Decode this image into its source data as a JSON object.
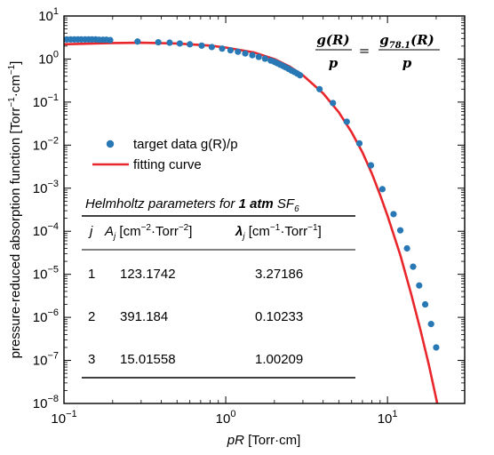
{
  "chart_data": {
    "type": "scatter",
    "xlabel": "pR [Torr·cm]",
    "ylabel": "pressure-reduced absorption function [Torr⁻¹·cm⁻¹]",
    "x_scale": "log",
    "y_scale": "log",
    "xlim": [
      0.1,
      30
    ],
    "ylim": [
      1e-08,
      10
    ],
    "x_ticks": [
      {
        "value": 0.1,
        "label": "10⁻¹"
      },
      {
        "value": 1,
        "label": "10⁰"
      },
      {
        "value": 10,
        "label": "10¹"
      }
    ],
    "y_ticks": [
      {
        "value": 10,
        "label": "10¹"
      },
      {
        "value": 1,
        "label": "10⁰"
      },
      {
        "value": 0.1,
        "label": "10⁻¹"
      },
      {
        "value": 0.01,
        "label": "10⁻²"
      },
      {
        "value": 0.001,
        "label": "10⁻³"
      },
      {
        "value": 0.0001,
        "label": "10⁻⁴"
      },
      {
        "value": 1e-05,
        "label": "10⁻⁵"
      },
      {
        "value": 1e-06,
        "label": "10⁻⁶"
      },
      {
        "value": 1e-07,
        "label": "10⁻⁷"
      },
      {
        "value": 1e-08,
        "label": "10⁻⁸"
      }
    ],
    "legend_position": "left-middle",
    "legend": [
      {
        "label": "target data g(R)/p",
        "marker": "circle",
        "color": "#2878b5"
      },
      {
        "label": "fitting curve",
        "marker": "line",
        "color": "#e8262b"
      }
    ],
    "equation": {
      "lhs_num": "g(R)",
      "lhs_den": "p",
      "rhs_num": "g78.1(R)",
      "rhs_den": "p",
      "equals": "="
    },
    "series": [
      {
        "name": "target data g(R)/p",
        "kind": "scatter",
        "color": "#2878b5",
        "x": [
          0.104,
          0.11,
          0.116,
          0.122,
          0.128,
          0.135,
          0.142,
          0.149,
          0.157,
          0.165,
          0.174,
          0.183,
          0.193,
          0.285,
          0.383,
          0.45,
          0.52,
          0.6,
          0.71,
          0.82,
          0.95,
          1.07,
          1.19,
          1.32,
          1.46,
          1.6,
          1.75,
          1.9,
          2.0,
          2.08,
          2.17,
          2.26,
          2.35,
          2.45,
          2.55,
          2.66,
          2.77,
          2.88,
          3.8,
          4.6,
          5.6,
          6.7,
          7.9,
          9.3,
          10.9,
          12.0,
          13.2,
          14.4,
          15.7,
          17.1,
          18.6,
          20.0
        ],
        "values": [
          2.85,
          2.85,
          2.85,
          2.85,
          2.85,
          2.85,
          2.85,
          2.85,
          2.85,
          2.8,
          2.8,
          2.8,
          2.75,
          2.55,
          2.45,
          2.4,
          2.3,
          2.2,
          2.05,
          1.9,
          1.75,
          1.6,
          1.48,
          1.35,
          1.23,
          1.12,
          1.02,
          0.92,
          0.86,
          0.8,
          0.74,
          0.69,
          0.64,
          0.59,
          0.54,
          0.5,
          0.46,
          0.42,
          0.2,
          0.095,
          0.035,
          0.011,
          0.0034,
          0.00095,
          0.00025,
          0.000105,
          4e-05,
          1.5e-05,
          5.5e-06,
          2e-06,
          7e-07,
          2e-07
        ]
      },
      {
        "name": "fitting curve",
        "kind": "line",
        "color": "#e8262b",
        "x": [
          0.1,
          0.2,
          0.3,
          0.5,
          0.8,
          1.0,
          1.5,
          2.0,
          2.5,
          3.0,
          4.0,
          5.0,
          6.0,
          7.0,
          8.0,
          9.0,
          10.0,
          12.0,
          14.0,
          16.0,
          18.0,
          20.0,
          22.0
        ],
        "values": [
          2.2,
          2.35,
          2.4,
          2.3,
          2.05,
          1.85,
          1.42,
          1.0,
          0.66,
          0.42,
          0.16,
          0.058,
          0.02,
          0.0068,
          0.0022,
          0.0007,
          0.00023,
          2.8e-05,
          3.5e-06,
          5e-07,
          8e-08,
          1.3e-08,
          2.5e-09
        ]
      }
    ],
    "table": {
      "title_pre": "Helmholtz parameters for ",
      "title_bold": "1 atm",
      "title_post": " SF",
      "title_sub": "6",
      "headers": {
        "col1": "j",
        "col2_var": "A",
        "col2_sub": "j",
        "col2_unit_a": " [cm",
        "col2_sup": "−2",
        "col2_unit_b": "·Torr",
        "col2_sup2": "−2",
        "col2_unit_c": "]",
        "col3_var": "λ",
        "col3_sub": "j",
        "col3_unit_a": " [cm",
        "col3_sup": "−1",
        "col3_unit_b": "·Torr",
        "col3_sup2": "−1",
        "col3_unit_c": "]"
      },
      "rows": [
        {
          "j": "1",
          "A": "123.1742",
          "lambda": "3.27186"
        },
        {
          "j": "2",
          "A": "391.184",
          "lambda": "0.10233"
        },
        {
          "j": "3",
          "A": "15.01558",
          "lambda": "1.00209"
        }
      ]
    }
  }
}
